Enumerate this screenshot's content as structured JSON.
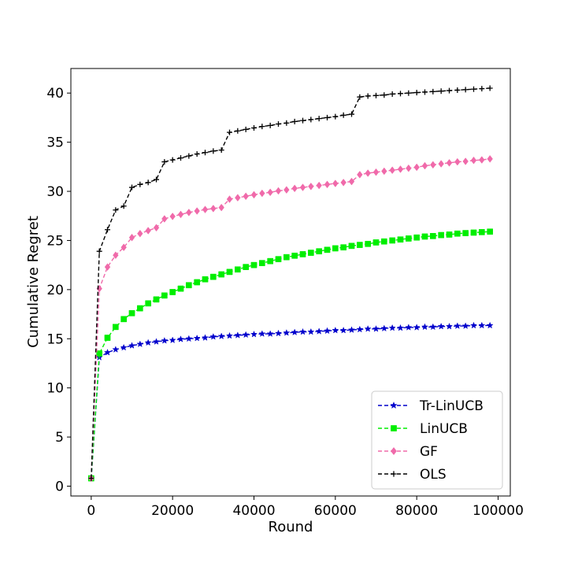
{
  "chart_data": {
    "type": "line",
    "title": "",
    "xlabel": "Round",
    "ylabel": "Cumulative Regret",
    "xlim": [
      -5000,
      103000
    ],
    "ylim": [
      -1,
      42.5
    ],
    "xticks": [
      0,
      20000,
      40000,
      60000,
      80000,
      100000
    ],
    "xtick_labels": [
      "0",
      "20000",
      "40000",
      "60000",
      "80000",
      "100000"
    ],
    "yticks": [
      0,
      5,
      10,
      15,
      20,
      25,
      30,
      35,
      40
    ],
    "ytick_labels": [
      "0",
      "5",
      "10",
      "15",
      "20",
      "25",
      "30",
      "35",
      "40"
    ],
    "grid": false,
    "legend_position": "lower-right",
    "x": [
      0,
      2000,
      4000,
      6000,
      8000,
      10000,
      12000,
      14000,
      16000,
      18000,
      20000,
      22000,
      24000,
      26000,
      28000,
      30000,
      32000,
      34000,
      36000,
      38000,
      40000,
      42000,
      44000,
      46000,
      48000,
      50000,
      52000,
      54000,
      56000,
      58000,
      60000,
      62000,
      64000,
      66000,
      68000,
      70000,
      72000,
      74000,
      76000,
      78000,
      80000,
      82000,
      84000,
      86000,
      88000,
      90000,
      92000,
      94000,
      96000,
      98000
    ],
    "series": [
      {
        "name": "Tr-LinUCB",
        "color": "#0000cc",
        "marker": "star",
        "values": [
          0.8,
          13.1,
          13.6,
          13.9,
          14.1,
          14.3,
          14.45,
          14.6,
          14.7,
          14.8,
          14.85,
          14.95,
          15.0,
          15.05,
          15.1,
          15.2,
          15.25,
          15.3,
          15.35,
          15.4,
          15.45,
          15.5,
          15.5,
          15.55,
          15.6,
          15.65,
          15.7,
          15.7,
          15.75,
          15.8,
          15.85,
          15.85,
          15.9,
          15.95,
          16.0,
          16.0,
          16.05,
          16.1,
          16.1,
          16.15,
          16.15,
          16.2,
          16.2,
          16.25,
          16.25,
          16.3,
          16.3,
          16.35,
          16.35,
          16.35
        ]
      },
      {
        "name": "LinUCB",
        "color": "#00ee00",
        "marker": "square",
        "values": [
          0.8,
          13.5,
          15.1,
          16.2,
          17.0,
          17.6,
          18.1,
          18.6,
          19.0,
          19.4,
          19.75,
          20.1,
          20.45,
          20.75,
          21.05,
          21.3,
          21.55,
          21.8,
          22.05,
          22.3,
          22.5,
          22.7,
          22.9,
          23.1,
          23.3,
          23.45,
          23.6,
          23.75,
          23.9,
          24.05,
          24.2,
          24.3,
          24.45,
          24.55,
          24.65,
          24.8,
          24.9,
          25.0,
          25.1,
          25.2,
          25.3,
          25.4,
          25.45,
          25.55,
          25.6,
          25.7,
          25.75,
          25.8,
          25.85,
          25.9
        ]
      },
      {
        "name": "GF",
        "color": "#f06aaa",
        "marker": "diamond",
        "values": [
          0.8,
          20.1,
          22.3,
          23.5,
          24.3,
          25.3,
          25.7,
          26.0,
          26.3,
          27.2,
          27.45,
          27.65,
          27.85,
          28.0,
          28.15,
          28.25,
          28.35,
          29.2,
          29.35,
          29.5,
          29.65,
          29.8,
          29.9,
          30.05,
          30.15,
          30.3,
          30.4,
          30.5,
          30.6,
          30.7,
          30.8,
          30.9,
          31.0,
          31.7,
          31.85,
          31.95,
          32.05,
          32.15,
          32.25,
          32.35,
          32.45,
          32.6,
          32.7,
          32.8,
          32.9,
          33.0,
          33.05,
          33.15,
          33.2,
          33.3
        ]
      },
      {
        "name": "OLS",
        "color": "#000000",
        "marker": "plus",
        "values": [
          0.8,
          23.9,
          26.1,
          28.1,
          28.5,
          30.4,
          30.7,
          30.9,
          31.2,
          33.0,
          33.2,
          33.4,
          33.6,
          33.8,
          33.95,
          34.1,
          34.2,
          36.0,
          36.15,
          36.3,
          36.45,
          36.6,
          36.7,
          36.85,
          36.95,
          37.1,
          37.2,
          37.3,
          37.4,
          37.5,
          37.6,
          37.75,
          37.85,
          39.6,
          39.7,
          39.75,
          39.8,
          39.9,
          39.95,
          40.0,
          40.05,
          40.1,
          40.15,
          40.2,
          40.25,
          40.3,
          40.35,
          40.4,
          40.45,
          40.5
        ]
      }
    ]
  }
}
